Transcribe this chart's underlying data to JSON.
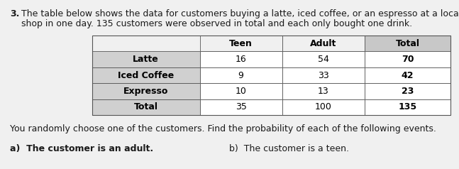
{
  "problem_number": "3.",
  "intro_text_line1": "The table below shows the data for customers buying a latte, iced coffee, or an espresso at a local coffee",
  "intro_text_line2": "shop in one day. 135 customers were observed in total and each only bought one drink.",
  "follow_up_text": "You randomly choose one of the customers. Find the probability of each of the following events.",
  "question_a": "a)  The customer is an adult.",
  "question_b": "b)  The customer is a teen.",
  "col_headers": [
    "",
    "Teen",
    "Adult",
    "Total"
  ],
  "rows": [
    [
      "Latte",
      "16",
      "54",
      "70"
    ],
    [
      "Iced Coffee",
      "9",
      "33",
      "42"
    ],
    [
      "Expresso",
      "10",
      "13",
      "23"
    ],
    [
      "Total",
      "35",
      "100",
      "135"
    ]
  ],
  "header_gray_bg": "#c8c8c8",
  "row_label_bg": "#d0d0d0",
  "total_row_bg": "#d0d0d0",
  "cell_bg": "#ffffff",
  "table_text_color": "#000000",
  "body_text_color": "#1a1a1a",
  "background_color": "#f0f0f0",
  "font_size_body": 9.0,
  "font_size_table": 9.0,
  "font_size_intro": 9.0
}
